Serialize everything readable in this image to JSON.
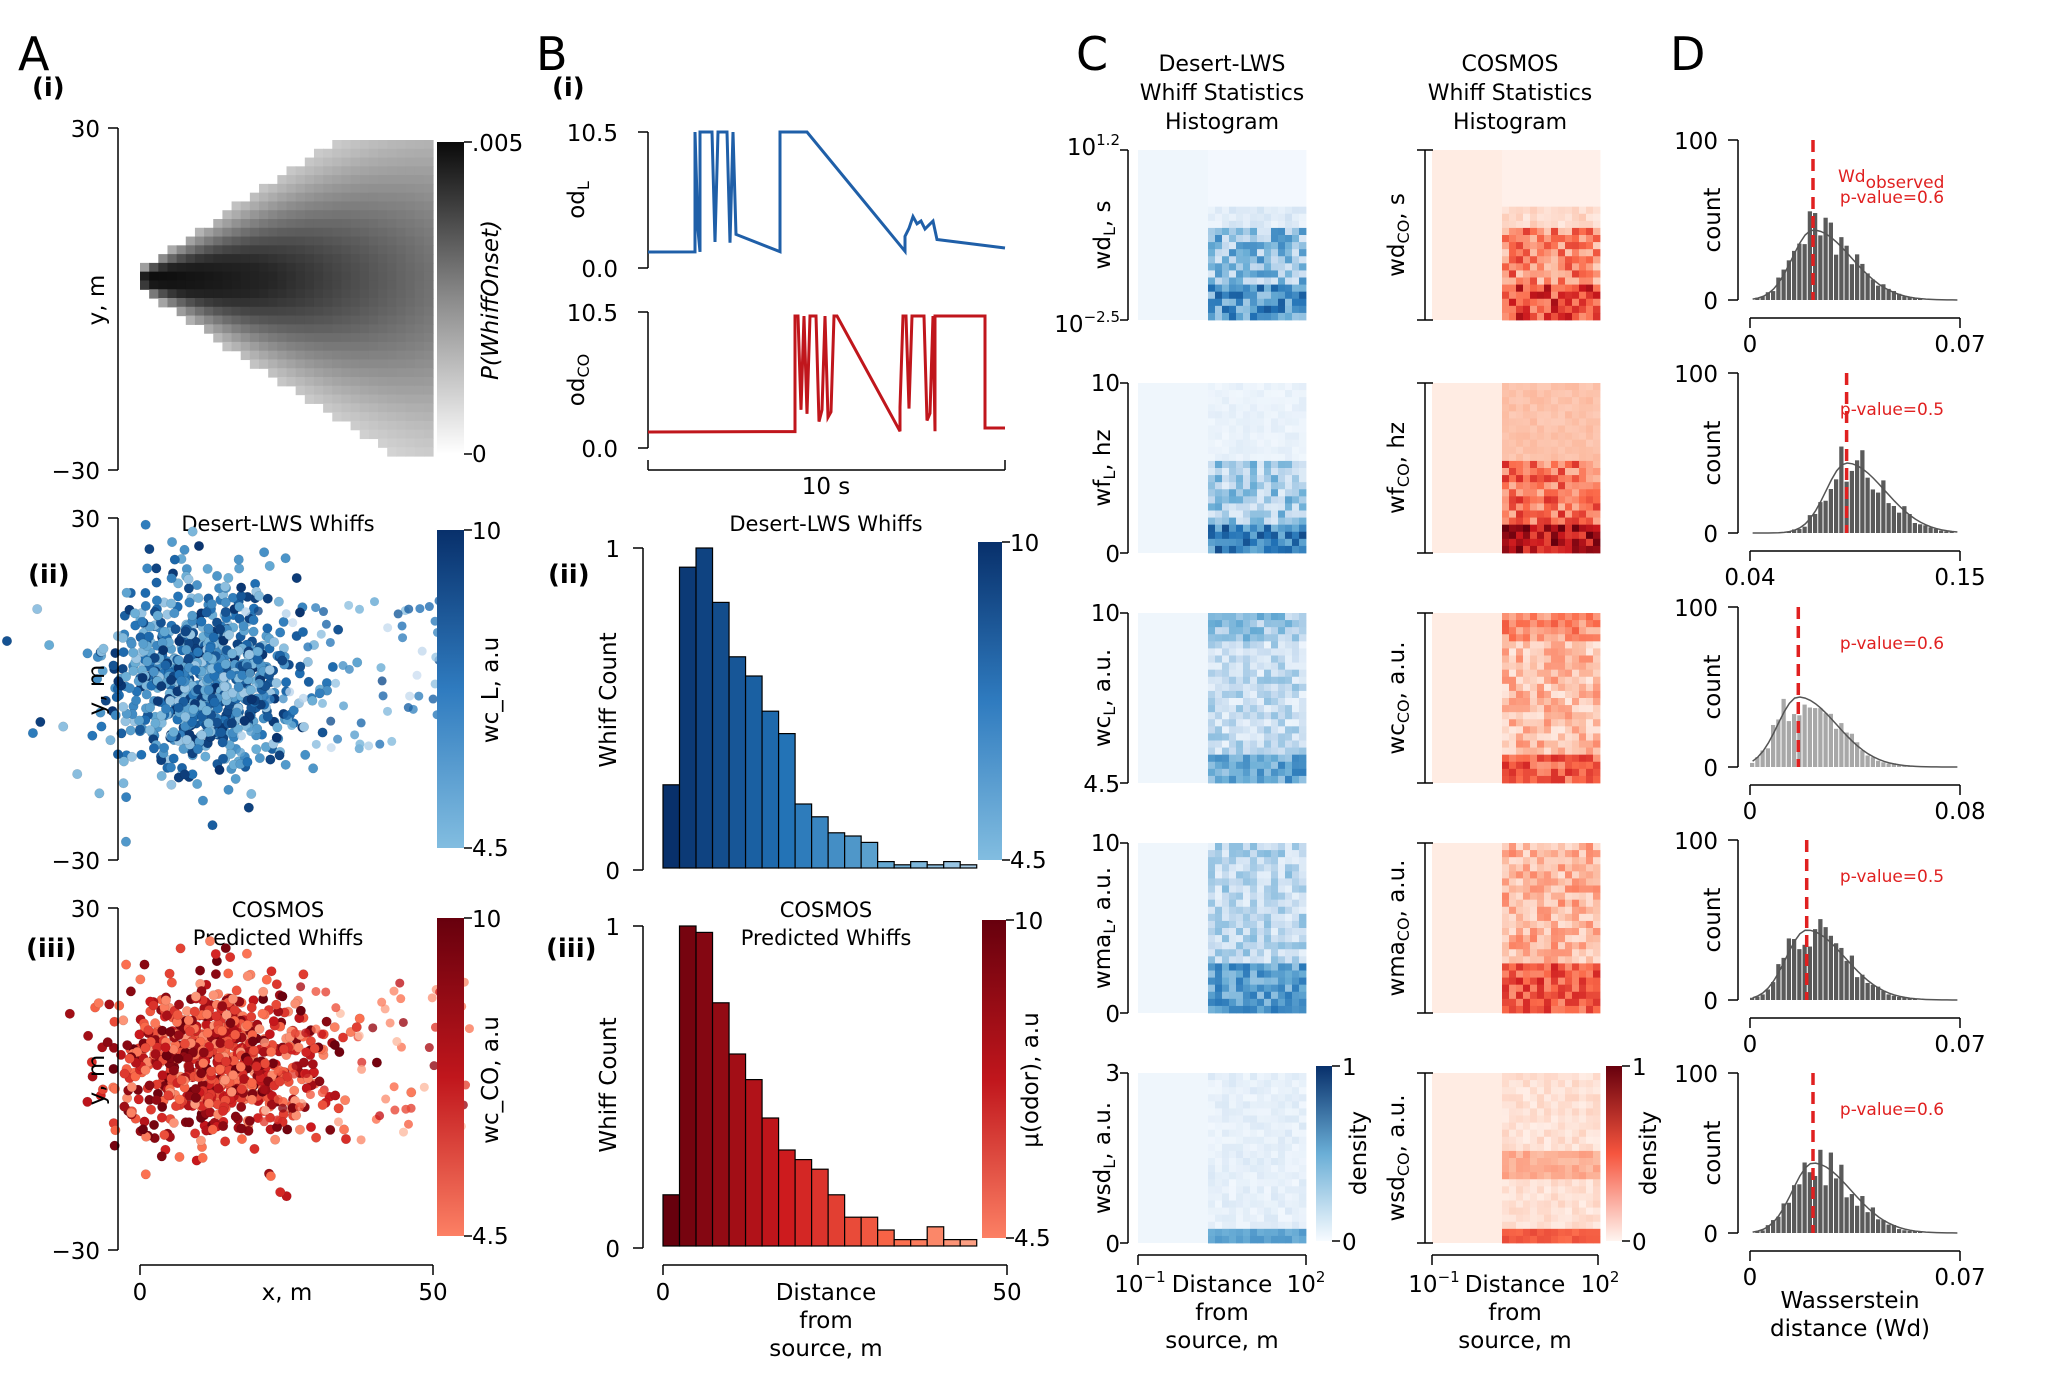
{
  "panels": {
    "A": {
      "letter": "A",
      "i": {
        "label": "(i)",
        "ylabel": "y, m",
        "yticks": [
          "30",
          "−30"
        ],
        "cbar_label": "P(WhiffOnset)",
        "cbar_ticks": [
          ".005",
          "0"
        ]
      },
      "ii": {
        "label": "(ii)",
        "title": "Desert-LWS Whiffs",
        "ylabel": "y, m",
        "yticks": [
          "30",
          "−30"
        ],
        "cbar_label": "wc_L, a.u",
        "cbar_ticks": [
          "10",
          "4.5"
        ]
      },
      "iii": {
        "label": "(iii)",
        "title1": "COSMOS",
        "title2": "Predicted Whiffs",
        "ylabel": "y, m",
        "yticks": [
          "30",
          "−30"
        ],
        "cbar_label": "wc_CO, a.u",
        "cbar_ticks": [
          "10",
          "4.5"
        ],
        "xticks": [
          "0",
          "50"
        ],
        "xlabel": "x, m"
      }
    },
    "B": {
      "letter": "B",
      "i": {
        "label": "(i)",
        "top_ylabel": "od_L",
        "top_yticks": [
          "10.5",
          "0.0"
        ],
        "bottom_ylabel": "od_CO",
        "bottom_yticks": [
          "10.5",
          "0.0"
        ],
        "scalebar": "10 s"
      },
      "ii": {
        "label": "(ii)",
        "title": "Desert-LWS Whiffs",
        "ylabel": "Whiff Count",
        "yticks": [
          "1",
          "0"
        ],
        "cbar_ticks": [
          "10",
          "4.5"
        ]
      },
      "iii": {
        "label": "(iii)",
        "title1": "COSMOS",
        "title2": "Predicted Whiffs",
        "ylabel": "Whiff Count",
        "yticks": [
          "1",
          "0"
        ],
        "cbar_label": "μ(odor), a.u",
        "cbar_ticks": [
          "10",
          "4.5"
        ],
        "xticks": [
          "0",
          "50"
        ],
        "xlabel1": "Distance",
        "xlabel2": "from",
        "xlabel3": "source, m"
      }
    },
    "C": {
      "letter": "C",
      "left_title": [
        "Desert-LWS",
        "Whiff Statistics",
        "Histogram"
      ],
      "right_title": [
        "COSMOS",
        "Whiff Statistics",
        "Histogram"
      ],
      "rows": [
        {
          "left_ylabel": "wd_L, s",
          "right_ylabel": "wd_CO, s",
          "yticks": [
            "10^1.2",
            "10^−2.5"
          ]
        },
        {
          "left_ylabel": "wf_L, hz",
          "right_ylabel": "wf_CO, hz",
          "yticks": [
            "10",
            "0"
          ]
        },
        {
          "left_ylabel": "wc_L, a.u.",
          "right_ylabel": "wc_CO, a.u.",
          "yticks": [
            "10",
            "4.5"
          ]
        },
        {
          "left_ylabel": "wma_L, a.u.",
          "right_ylabel": "wma_CO, a.u.",
          "yticks": [
            "10",
            "0"
          ]
        },
        {
          "left_ylabel": "wsd_L, a.u.",
          "right_ylabel": "wsd_CO, a.u.",
          "yticks": [
            "3",
            "0"
          ]
        }
      ],
      "density_label": "density",
      "density_ticks": [
        "1",
        "0"
      ],
      "xticks": [
        "10^−1",
        "10^2"
      ],
      "xlabel": [
        "Distance",
        "from",
        "source, m"
      ]
    },
    "D": {
      "letter": "D",
      "ylabel": "count",
      "annot_main": "Wd",
      "annot_sub": "observed",
      "rows": [
        {
          "yticks": [
            "100",
            "0"
          ],
          "xticks": [
            "0",
            "0.07"
          ],
          "pvalue": "p-value=0.6",
          "observed": 0.3
        },
        {
          "yticks": [
            "100",
            "0"
          ],
          "xticks": [
            "0.04",
            "0.15"
          ],
          "pvalue": "p-value=0.5",
          "observed": 0.46
        },
        {
          "yticks": [
            "100",
            "0"
          ],
          "xticks": [
            "0",
            "0.08"
          ],
          "pvalue": "p-value=0.6",
          "observed": 0.23
        },
        {
          "yticks": [
            "100",
            "0"
          ],
          "xticks": [
            "0",
            "0.07"
          ],
          "pvalue": "p-value=0.5",
          "observed": 0.27
        },
        {
          "yticks": [
            "100",
            "0"
          ],
          "xticks": [
            "0",
            "0.07"
          ],
          "pvalue": "p-value=0.6",
          "observed": 0.3
        }
      ],
      "xlabel": [
        "Wasserstein",
        "distance (Wd)"
      ]
    }
  },
  "chart_data": [
    {
      "type": "bar",
      "panel": "B(ii)",
      "title": "Desert-LWS Whiffs",
      "xlabel": "Distance from source, m",
      "ylabel": "Whiff Count",
      "xlim": [
        0,
        50
      ],
      "ylim": [
        0,
        1
      ],
      "bin_width": 2.4,
      "values": [
        0.26,
        0.94,
        1.0,
        0.83,
        0.66,
        0.6,
        0.49,
        0.42,
        0.2,
        0.16,
        0.11,
        0.1,
        0.08,
        0.02,
        0.01,
        0.02,
        0.01,
        0.02,
        0.01
      ]
    },
    {
      "type": "bar",
      "panel": "B(iii)",
      "title": "COSMOS Predicted Whiffs",
      "xlabel": "Distance from source, m",
      "ylabel": "Whiff Count",
      "xlim": [
        0,
        50
      ],
      "ylim": [
        0,
        1
      ],
      "bin_width": 2.4,
      "values": [
        0.16,
        1.0,
        0.98,
        0.76,
        0.6,
        0.52,
        0.4,
        0.3,
        0.27,
        0.24,
        0.16,
        0.09,
        0.09,
        0.05,
        0.02,
        0.02,
        0.06,
        0.02,
        0.02
      ]
    }
  ]
}
